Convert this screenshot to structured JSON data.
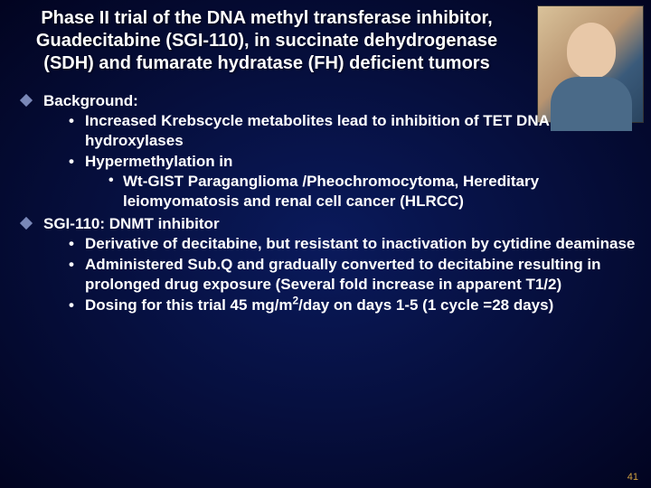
{
  "title": "Phase II trial of the DNA methyl transferase inhibitor, Guadecitabine (SGI-110), in succinate dehydrogenase (SDH) and fumarate hydratase (FH) deficient tumors",
  "bullets": [
    {
      "label": "Background:",
      "sub": [
        {
          "text": "Increased Krebscycle metabolites lead to inhibition of TET DNA hydroxylases"
        },
        {
          "text": "Hypermethylation in",
          "sub": [
            "Wt-GIST  Paraganglioma /Pheochromocytoma, Hereditary leiomyomatosis and renal cell cancer (HLRCC)"
          ]
        }
      ]
    },
    {
      "label": "SGI-110: DNMT inhibitor",
      "sub": [
        {
          "text": "Derivative of decitabine, but resistant to inactivation by cytidine deaminase"
        },
        {
          "text": "Administered Sub.Q and gradually converted to decitabine resulting in prolonged drug exposure (Several fold increase in apparent T1/2)"
        },
        {
          "text_html": "Dosing for this trial 45 mg/m<sup>2</sup>/day on days 1-5  (1 cycle =28 days)"
        }
      ]
    }
  ],
  "pageNumber": "41",
  "colors": {
    "text": "#ffffff",
    "diamond": "#7a88b8",
    "pageNum": "#d0a040",
    "bgInner": "#0a1a5c",
    "bgOuter": "#020420"
  },
  "fonts": {
    "title_pt": 20,
    "body_pt": 17,
    "weight": "bold"
  }
}
